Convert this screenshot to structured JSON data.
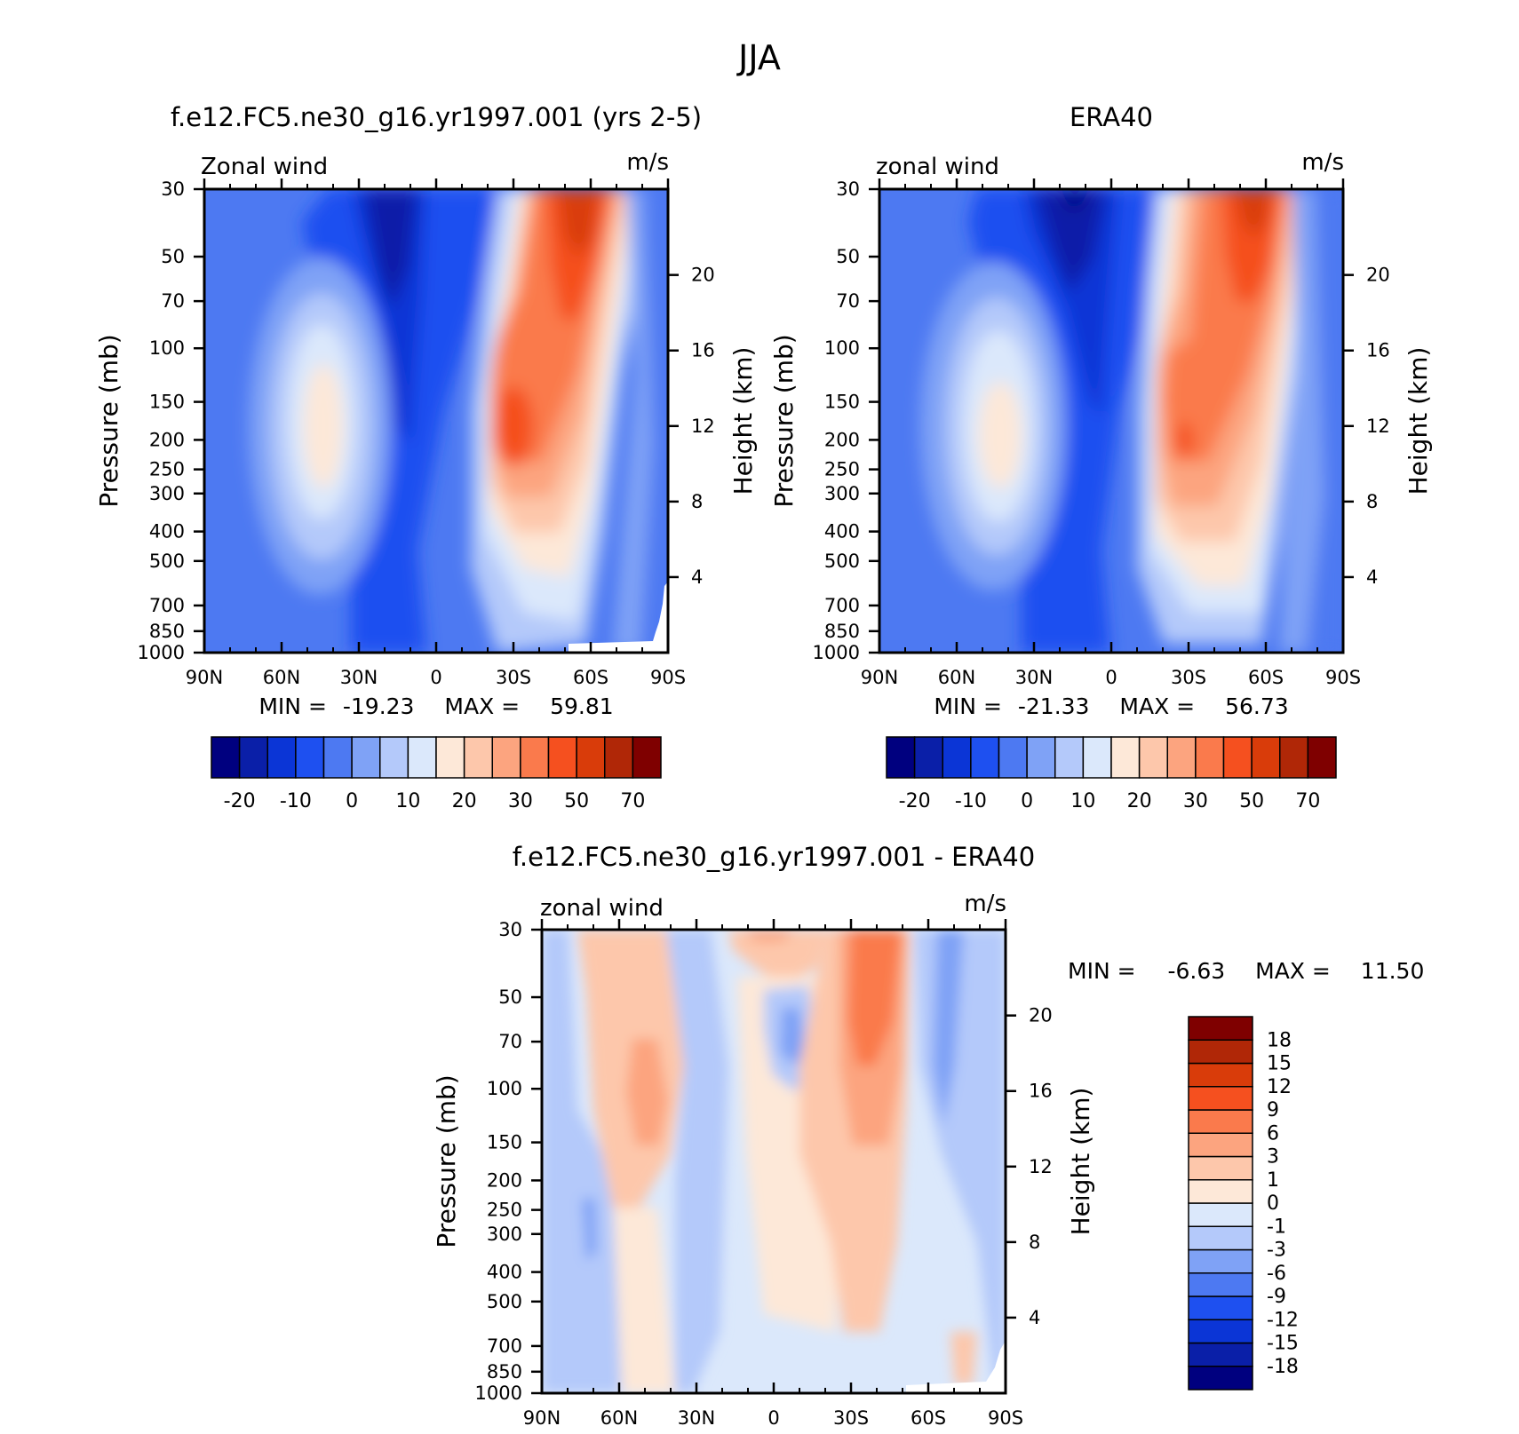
{
  "figure": {
    "title": "JJA"
  },
  "colors": {
    "full_field": [
      "#00007f",
      "#0a1fa8",
      "#0b35d6",
      "#1e50f0",
      "#4d79f2",
      "#7fa2f6",
      "#b4c9fa",
      "#dbe8fb",
      "#fde8d8",
      "#fdc7ab",
      "#fca47f",
      "#fa7a4c",
      "#f5501f",
      "#d93c0a",
      "#b02707",
      "#7f0000"
    ],
    "difference": [
      "#00007f",
      "#0a1fa8",
      "#0b35d6",
      "#1e50f0",
      "#4d79f2",
      "#7fa2f6",
      "#b4c9fa",
      "#dbe8fb",
      "#fde8d8",
      "#fdc7ab",
      "#fca47f",
      "#fa7a4c",
      "#f5501f",
      "#d93c0a",
      "#b02707",
      "#7f0000"
    ]
  },
  "chart_data": [
    {
      "type": "heatmap",
      "title": "f.e12.FC5.ne30_g16.yr1997.001 (yrs 2-5)",
      "subtitle_left": "Zonal wind",
      "subtitle_right": "m/s",
      "xlabel": "",
      "ylabel": "Pressure (mb)",
      "ylabel_right": "Height (km)",
      "x_ticks": [
        "90N",
        "60N",
        "30N",
        "0",
        "30S",
        "60S",
        "90S"
      ],
      "x": [
        90,
        60,
        30,
        0,
        -30,
        -60,
        -90
      ],
      "y_ticks": [
        "30",
        "50",
        "70",
        "100",
        "150",
        "200",
        "250",
        "300",
        "400",
        "500",
        "700",
        "850",
        "1000"
      ],
      "y": [
        30,
        50,
        70,
        100,
        150,
        200,
        250,
        300,
        400,
        500,
        700,
        850,
        1000
      ],
      "y_log_scale": true,
      "right_ticks": [
        "20",
        "16",
        "12",
        "8",
        "4"
      ],
      "right_values": [
        20,
        16,
        12,
        8,
        4
      ],
      "min_label": "MIN =",
      "min": "-19.23",
      "max_label": "MAX =",
      "max": "59.81",
      "colorbar": {
        "orientation": "horizontal",
        "labels": [
          "-20",
          "-10",
          "0",
          "10",
          "20",
          "30",
          "50",
          "70"
        ]
      },
      "features": [
        {
          "value": -19,
          "lat": 20,
          "p": 30
        },
        {
          "value": 55,
          "lat": -45,
          "p": 30
        },
        {
          "value": 42,
          "lat": -28,
          "p": 170
        },
        {
          "value": 21,
          "lat": -42,
          "p": 200
        }
      ]
    },
    {
      "type": "heatmap",
      "title": "ERA40",
      "subtitle_left": "zonal wind",
      "subtitle_right": "m/s",
      "xlabel": "",
      "ylabel": "Pressure (mb)",
      "ylabel_right": "Height (km)",
      "x_ticks": [
        "90N",
        "60N",
        "30N",
        "0",
        "30S",
        "60S",
        "90S"
      ],
      "x": [
        90,
        60,
        30,
        0,
        -30,
        -60,
        -90
      ],
      "y_ticks": [
        "30",
        "50",
        "70",
        "100",
        "150",
        "200",
        "250",
        "300",
        "400",
        "500",
        "700",
        "850",
        "1000"
      ],
      "y": [
        30,
        50,
        70,
        100,
        150,
        200,
        250,
        300,
        400,
        500,
        700,
        850,
        1000
      ],
      "y_log_scale": true,
      "right_ticks": [
        "20",
        "16",
        "12",
        "8",
        "4"
      ],
      "right_values": [
        20,
        16,
        12,
        8,
        4
      ],
      "min_label": "MIN =",
      "min": "-21.33",
      "max_label": "MAX =",
      "max": "56.73",
      "colorbar": {
        "orientation": "horizontal",
        "labels": [
          "-20",
          "-10",
          "0",
          "10",
          "20",
          "30",
          "50",
          "70"
        ]
      },
      "features": [
        {
          "value": -21,
          "lat": 15,
          "p": 30
        },
        {
          "value": 50,
          "lat": -60,
          "p": 30
        },
        {
          "value": 40,
          "lat": -30,
          "p": 200
        },
        {
          "value": 22,
          "lat": -42,
          "p": 200
        }
      ]
    },
    {
      "type": "heatmap",
      "title": "f.e12.FC5.ne30_g16.yr1997.001 - ERA40",
      "subtitle_left": "zonal wind",
      "subtitle_right": "m/s",
      "xlabel": "",
      "ylabel": "Pressure (mb)",
      "ylabel_right": "Height (km)",
      "x_ticks": [
        "90N",
        "60N",
        "30N",
        "0",
        "30S",
        "60S",
        "90S"
      ],
      "x": [
        90,
        60,
        30,
        0,
        -30,
        -60,
        -90
      ],
      "y_ticks": [
        "30",
        "50",
        "70",
        "100",
        "150",
        "200",
        "250",
        "300",
        "400",
        "500",
        "700",
        "850",
        "1000"
      ],
      "y": [
        30,
        50,
        70,
        100,
        150,
        200,
        250,
        300,
        400,
        500,
        700,
        850,
        1000
      ],
      "y_log_scale": true,
      "right_ticks": [
        "20",
        "16",
        "12",
        "8",
        "4"
      ],
      "right_values": [
        20,
        16,
        12,
        8,
        4
      ],
      "min_label": "MIN =",
      "min": "-6.63",
      "max_label": "MAX =",
      "max": "11.50",
      "colorbar": {
        "orientation": "vertical",
        "labels": [
          "18",
          "15",
          "12",
          "9",
          "6",
          "3",
          "1",
          "0",
          "-1",
          "-3",
          "-6",
          "-9",
          "-12",
          "-15",
          "-18"
        ]
      },
      "features": [
        {
          "value": 10,
          "lat": -38,
          "p": 70
        },
        {
          "value": -5,
          "lat": -10,
          "p": 75
        },
        {
          "value": 4,
          "lat": 50,
          "p": 120
        },
        {
          "value": -4,
          "lat": -62,
          "p": 100
        }
      ]
    }
  ]
}
